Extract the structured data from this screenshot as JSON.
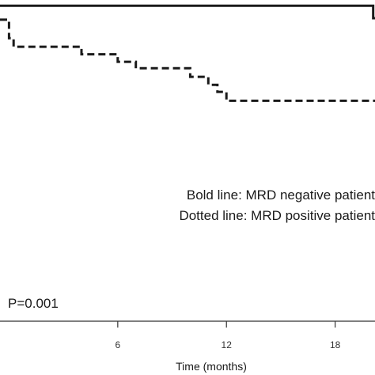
{
  "chart_data": {
    "type": "line",
    "title": "",
    "xlabel": "Time (months)",
    "ylabel": "",
    "xlim": [
      -0.5,
      20.2
    ],
    "ylim": [
      0.37,
      1.005
    ],
    "xticks": [
      6,
      12,
      18
    ],
    "xtick_labels": [
      "6",
      "12",
      "18"
    ],
    "grid": false,
    "series": [
      {
        "key": "mrd_negative",
        "line_style": "solid",
        "color": "#1a1a1a",
        "x": [
          -0.5,
          20.1,
          20.1,
          20.2
        ],
        "y": [
          1.0,
          1.0,
          0.975,
          0.975
        ]
      },
      {
        "key": "mrd_positive",
        "line_style": "dashed",
        "color": "#1a1a1a",
        "x": [
          -0.5,
          0.0,
          0.0,
          0.25,
          0.25,
          4.0,
          4.0,
          6.0,
          6.0,
          7.0,
          7.0,
          10.0,
          10.0,
          11.0,
          11.0,
          11.5,
          11.5,
          12.0,
          12.0,
          20.2
        ],
        "y": [
          0.972,
          0.972,
          0.935,
          0.935,
          0.918,
          0.918,
          0.903,
          0.903,
          0.888,
          0.888,
          0.875,
          0.875,
          0.858,
          0.858,
          0.842,
          0.842,
          0.828,
          0.828,
          0.81,
          0.81
        ]
      }
    ],
    "legend": {
      "placement": "right",
      "entries": [
        "Bold line: MRD negative patient",
        "Dotted line: MRD positive patient"
      ]
    },
    "annotation": "P=0.001"
  }
}
